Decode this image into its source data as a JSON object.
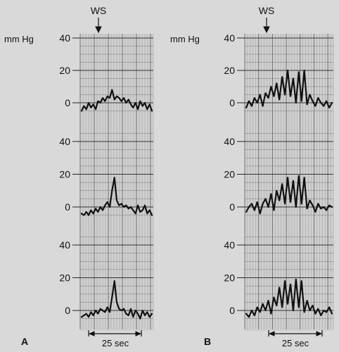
{
  "chart_data": [
    {
      "type": "line",
      "panel": "A",
      "marker": "WS",
      "unit": "mm Hg",
      "y_ticks": [
        "0",
        "20",
        "40"
      ],
      "ylim": [
        -5,
        45
      ],
      "time_scale_label": "25 sec",
      "traces": [
        {
          "name": "",
          "values": [
            -5,
            -2,
            -4,
            0,
            -3,
            -1,
            -4,
            1,
            0,
            3,
            1,
            4,
            3,
            8,
            2,
            4,
            3,
            1,
            3,
            0,
            2,
            -1,
            -3,
            0,
            -4,
            1,
            -2,
            0,
            -4,
            -1,
            -5
          ]
        },
        {
          "name": "",
          "values": [
            -4,
            -5,
            -3,
            -5,
            -2,
            -4,
            -1,
            -3,
            0,
            -2,
            1,
            3,
            0,
            10,
            18,
            4,
            1,
            2,
            0,
            1,
            -1,
            0,
            -2,
            -4,
            1,
            -3,
            -2,
            1,
            -4,
            -2,
            -5
          ]
        },
        {
          "name": "",
          "values": [
            -4,
            -3,
            -2,
            -4,
            -1,
            -3,
            0,
            -2,
            1,
            0,
            -1,
            2,
            -1,
            8,
            18,
            5,
            1,
            0,
            1,
            -2,
            -3,
            1,
            -4,
            0,
            -2,
            -5,
            0,
            -3,
            -1,
            -4,
            -2
          ]
        }
      ]
    },
    {
      "type": "line",
      "panel": "B",
      "marker": "WS",
      "unit": "mm Hg",
      "y_ticks": [
        "0",
        "20",
        "40"
      ],
      "ylim": [
        -5,
        45
      ],
      "time_scale_label": "25 sec",
      "traces": [
        {
          "name": "",
          "values": [
            -3,
            1,
            -2,
            3,
            0,
            5,
            -2,
            6,
            3,
            10,
            4,
            12,
            2,
            16,
            5,
            20,
            4,
            15,
            0,
            19,
            1,
            20,
            -1,
            5,
            1,
            -2,
            3,
            0,
            -2,
            1,
            -3,
            0
          ]
        },
        {
          "name": "",
          "values": [
            -3,
            0,
            2,
            -2,
            3,
            -4,
            2,
            5,
            0,
            8,
            -2,
            10,
            4,
            14,
            2,
            18,
            3,
            16,
            0,
            19,
            2,
            18,
            -1,
            4,
            1,
            -3,
            2,
            -1,
            0,
            -2,
            1,
            0
          ]
        },
        {
          "name": "",
          "values": [
            -2,
            -4,
            0,
            -3,
            2,
            -1,
            4,
            0,
            6,
            -2,
            8,
            3,
            14,
            2,
            18,
            4,
            16,
            0,
            19,
            2,
            18,
            -1,
            6,
            0,
            3,
            -2,
            1,
            -3,
            0,
            -1,
            2,
            -2
          ]
        }
      ]
    }
  ]
}
